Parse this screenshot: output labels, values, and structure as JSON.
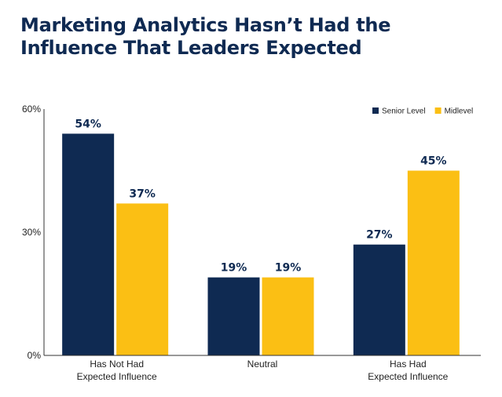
{
  "chart_data": {
    "type": "bar",
    "title": "Marketing Analytics Hasn’t Had the Influence That Leaders Expected",
    "categories": [
      [
        "Has Not Had",
        "Expected Influence"
      ],
      [
        "Neutral"
      ],
      [
        "Has Had",
        "Expected Influence"
      ]
    ],
    "series": [
      {
        "name": "Senior Level",
        "values": [
          54,
          19,
          27
        ],
        "color": "#0f2a52"
      },
      {
        "name": "Midlevel",
        "values": [
          37,
          19,
          45
        ],
        "color": "#fbbf14"
      }
    ],
    "ylim": [
      0,
      60
    ],
    "yticks": [
      0,
      30,
      60
    ],
    "tick_suffix": "%",
    "data_label_suffix": "%",
    "xlabel": "",
    "ylabel": "",
    "grid": false,
    "legend_position": "top-right"
  }
}
